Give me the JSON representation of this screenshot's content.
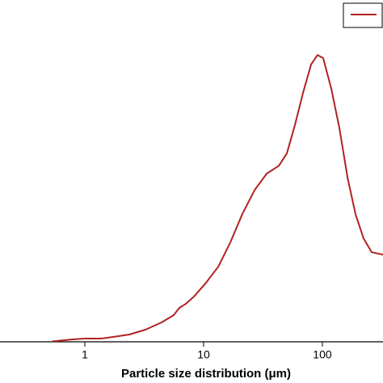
{
  "chart_data": {
    "type": "line",
    "xlabel": "Particle size distribution (μm)",
    "x_scale": "log",
    "xlim": [
      0.193,
      324
    ],
    "xticks": [
      1,
      10,
      100
    ],
    "ylim": [
      0,
      100
    ],
    "x": [
      0.534,
      0.578,
      0.791,
      1,
      1.368,
      1.73,
      2.37,
      3.24,
      4.43,
      5.6,
      6.25,
      7.08,
      8.28,
      10.5,
      13.3,
      16.8,
      21.2,
      26.9,
      34,
      43,
      50.2,
      58.7,
      68.7,
      80.3,
      91,
      101.6,
      119,
      139,
      163,
      190,
      222,
      260,
      324
    ],
    "series": [
      {
        "color": "#b22222",
        "values": [
          0.2,
          0.24,
          0.71,
          0.95,
          0.95,
          1.42,
          2.13,
          3.55,
          5.67,
          7.8,
          9.93,
          11.1,
          13.2,
          17.3,
          22,
          29.1,
          37.4,
          44.4,
          49.2,
          51.5,
          55.1,
          63.4,
          72.8,
          81.1,
          83.9,
          83,
          74,
          62.6,
          48,
          37.4,
          30.3,
          26.2,
          25.5
        ]
      }
    ]
  }
}
